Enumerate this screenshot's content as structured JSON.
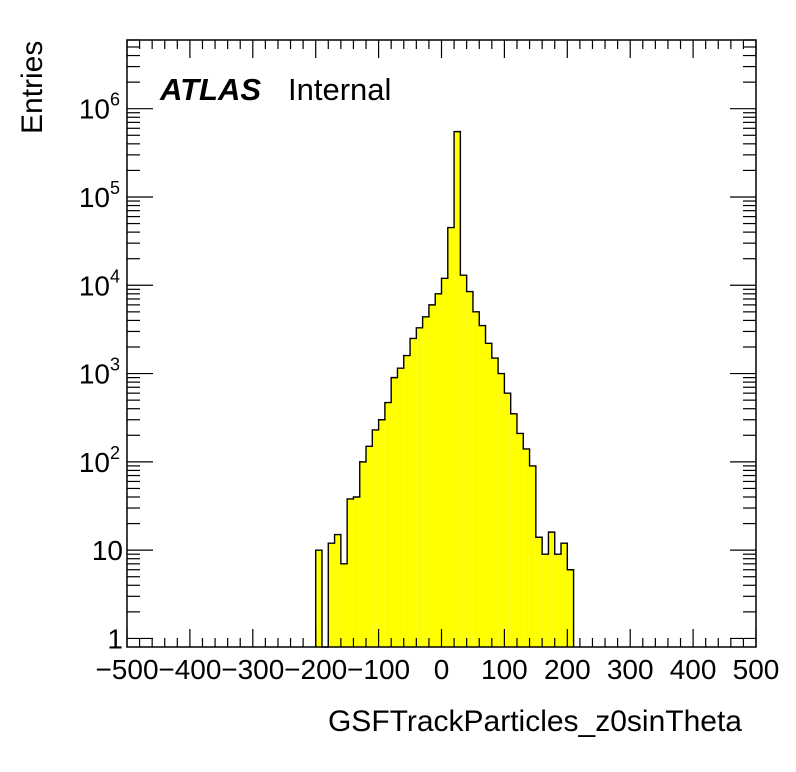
{
  "chart_data": {
    "type": "bar",
    "title": "",
    "xlabel": "GSFTrackParticles_z0sinTheta",
    "ylabel": "Entries",
    "xlim": [
      -500,
      500
    ],
    "ylim": [
      0.8,
      6000000
    ],
    "yscale": "log",
    "grid": false,
    "bin_width": 10,
    "x_ticks": [
      -500,
      -400,
      -300,
      -200,
      -100,
      0,
      100,
      200,
      300,
      400,
      500
    ],
    "x_tick_labels": [
      "−500",
      "−400",
      "−300",
      "−200",
      "−100",
      "0",
      "100",
      "200",
      "300",
      "400",
      "500"
    ],
    "y_ticks": [
      1,
      10,
      100,
      1000,
      10000,
      100000,
      1000000
    ],
    "y_tick_labels": [
      {
        "base": "1",
        "exp": ""
      },
      {
        "base": "10",
        "exp": ""
      },
      {
        "base": "10",
        "exp": "2"
      },
      {
        "base": "10",
        "exp": "3"
      },
      {
        "base": "10",
        "exp": "4"
      },
      {
        "base": "10",
        "exp": "5"
      },
      {
        "base": "10",
        "exp": "6"
      }
    ],
    "series": [
      {
        "fill": "#ffff00",
        "edge": "#000000",
        "bins": [
          {
            "x": -195,
            "y": 10
          },
          {
            "x": -185,
            "y": 0
          },
          {
            "x": -175,
            "y": 12
          },
          {
            "x": -165,
            "y": 15
          },
          {
            "x": -155,
            "y": 7
          },
          {
            "x": -145,
            "y": 38
          },
          {
            "x": -135,
            "y": 40
          },
          {
            "x": -125,
            "y": 100
          },
          {
            "x": -115,
            "y": 150
          },
          {
            "x": -105,
            "y": 230
          },
          {
            "x": -95,
            "y": 300
          },
          {
            "x": -85,
            "y": 470
          },
          {
            "x": -75,
            "y": 900
          },
          {
            "x": -65,
            "y": 1150
          },
          {
            "x": -55,
            "y": 1600
          },
          {
            "x": -45,
            "y": 2500
          },
          {
            "x": -35,
            "y": 3300
          },
          {
            "x": -25,
            "y": 4400
          },
          {
            "x": -15,
            "y": 6000
          },
          {
            "x": -5,
            "y": 8000
          },
          {
            "x": 5,
            "y": 12000
          },
          {
            "x": 15,
            "y": 45000
          },
          {
            "x": 25,
            "y": 550000
          },
          {
            "x": 35,
            "y": 13000
          },
          {
            "x": 45,
            "y": 8500
          },
          {
            "x": 55,
            "y": 5000
          },
          {
            "x": 65,
            "y": 3500
          },
          {
            "x": 75,
            "y": 2200
          },
          {
            "x": 85,
            "y": 1500
          },
          {
            "x": 95,
            "y": 1000
          },
          {
            "x": 105,
            "y": 600
          },
          {
            "x": 115,
            "y": 350
          },
          {
            "x": 125,
            "y": 210
          },
          {
            "x": 135,
            "y": 140
          },
          {
            "x": 145,
            "y": 90
          },
          {
            "x": 155,
            "y": 14
          },
          {
            "x": 165,
            "y": 9
          },
          {
            "x": 175,
            "y": 16
          },
          {
            "x": 185,
            "y": 9
          },
          {
            "x": 195,
            "y": 12
          },
          {
            "x": 205,
            "y": 6
          }
        ]
      }
    ]
  },
  "annotations": {
    "atlas_label": "ATLAS",
    "internal_label": "Internal"
  }
}
